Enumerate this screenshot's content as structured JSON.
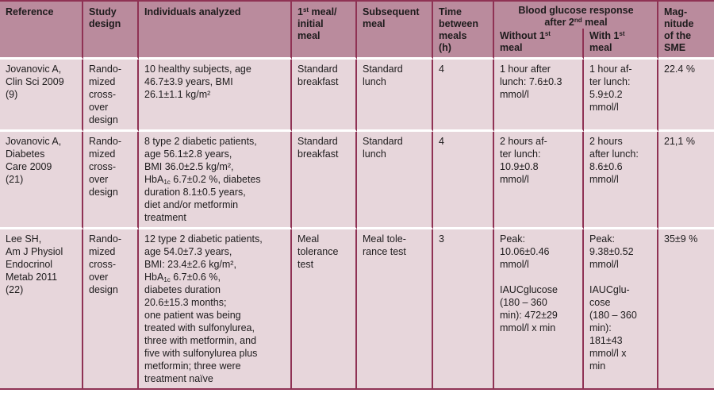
{
  "colors": {
    "header_bg": "#ba8b9d",
    "body_row_bg": "#e7d6db",
    "column_rule": "#8f3254",
    "row_gap": "#ffffff",
    "text": "#1d1b1c"
  },
  "table": {
    "group_header": {
      "label": "Blood glucose response\nafter 2^{nd} meal"
    },
    "columns": [
      {
        "id": "reference",
        "label": "Reference"
      },
      {
        "id": "study-design",
        "label": "Study\ndesign"
      },
      {
        "id": "individuals",
        "label": "Individuals analyzed"
      },
      {
        "id": "first-meal",
        "label": "1^{st} meal/\ninitial\nmeal"
      },
      {
        "id": "subsequent-meal",
        "label": "Subsequent\nmeal"
      },
      {
        "id": "time-between-meals",
        "label": "Time\nbetween\nmeals\n(h)"
      },
      {
        "id": "without-first-meal",
        "label": "Without 1^{st}\nmeal",
        "group": true
      },
      {
        "id": "with-first-meal",
        "label": "With 1^{st}\nmeal",
        "group": true
      },
      {
        "id": "sme-magnitude",
        "label": "Mag-\nnitude\nof the\nSME"
      }
    ],
    "rows": [
      {
        "cells": [
          "Jovanovic A,\nClin Sci 2009\n(9)",
          "Rando-\nmized\ncross-\nover\ndesign",
          "10 healthy subjects, age\n46.7±3.9 years, BMI\n26.1±1.1 kg/m²",
          "Standard\nbreakfast",
          "Standard\nlunch",
          "4",
          "1 hour after\nlunch: 7.6±0.3\nmmol/l",
          "1 hour af-\nter lunch:\n5.9±0.2\nmmol/l",
          "22.4 %"
        ]
      },
      {
        "cells": [
          "Jovanovic A,\nDiabetes\nCare 2009\n(21)",
          "Rando-\nmized\ncross-\nover\ndesign",
          "8 type 2 diabetic patients,\nage 56.1±2.8 years,\nBMI 36.0±2.5 kg/m²,\nHbA_{1c} 6.7±0.2 %, diabetes\nduration 8.1±0.5 years,\ndiet and/or metformin\ntreatment",
          "Standard\nbreakfast",
          "Standard\nlunch",
          "4",
          "2 hours af-\nter lunch:\n10.9±0.8\nmmol/l",
          "2 hours\nafter lunch:\n8.6±0.6\nmmol/l",
          "21,1 %"
        ]
      },
      {
        "cells": [
          "Lee SH,\nAm J Physiol\nEndocrinol\nMetab 2011\n(22)",
          "Rando-\nmized\ncross-\nover\ndesign",
          "12 type 2 diabetic patients,\nage 54.0±7.3 years,\nBMI: 23.4±2.6 kg/m²,\nHbA_{1c} 6.7±0.6 %,\ndiabetes duration\n20.6±15.3 months;\none patient was being\ntreated with sulfonylurea,\nthree with metformin, and\nfive with sulfonylurea plus\nmetformin; three were\ntreatment naïve",
          "Meal\ntolerance\ntest",
          "Meal tole-\nrance test",
          "3",
          "Peak:\n10.06±0.46\nmmol/l\n\nIAUCglucose\n(180 – 360\nmin): 472±29\nmmol/l x min",
          "Peak:\n9.38±0.52\nmmol/l\n\nIAUCglu-\ncose\n(180 – 360\nmin):\n181±43\nmmol/l x\nmin",
          "35±9 %"
        ]
      }
    ]
  }
}
